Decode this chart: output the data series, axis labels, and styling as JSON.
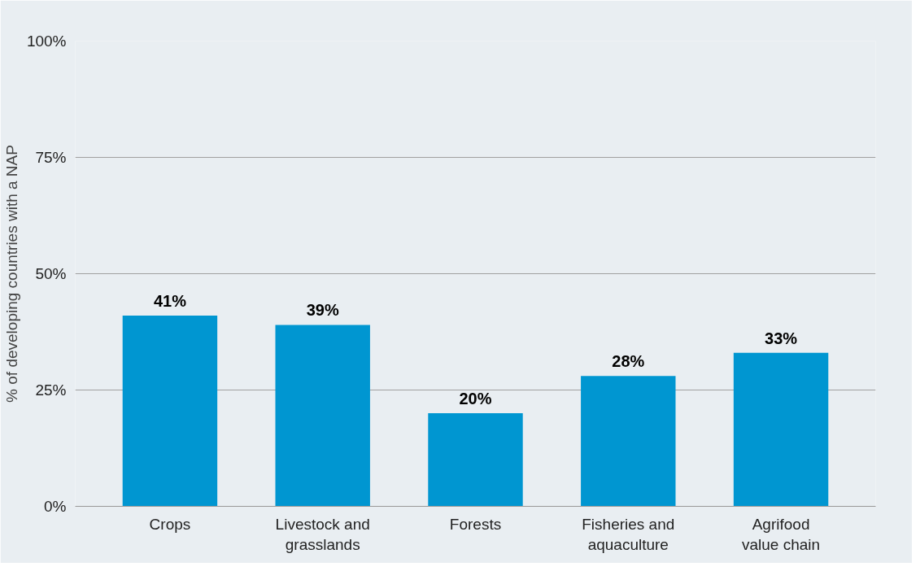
{
  "chart_data": {
    "type": "bar",
    "ylabel": "% of developing countries with a NAP",
    "categories": [
      "Crops",
      "Livestock and grasslands",
      "Forests",
      "Fisheries and aquaculture",
      "Agrifood value chain"
    ],
    "values": [
      41,
      39,
      20,
      28,
      33
    ],
    "value_labels": [
      "41%",
      "39%",
      "20%",
      "28%",
      "33%"
    ],
    "color": "#0096d1",
    "ylim": [
      0,
      100
    ],
    "yticks": [
      {
        "value": 0,
        "label": "0%"
      },
      {
        "value": 25,
        "label": "25%"
      },
      {
        "value": 50,
        "label": "50%"
      },
      {
        "value": 75,
        "label": "75%"
      },
      {
        "value": 100,
        "label": "100%"
      }
    ],
    "grid": "y"
  }
}
